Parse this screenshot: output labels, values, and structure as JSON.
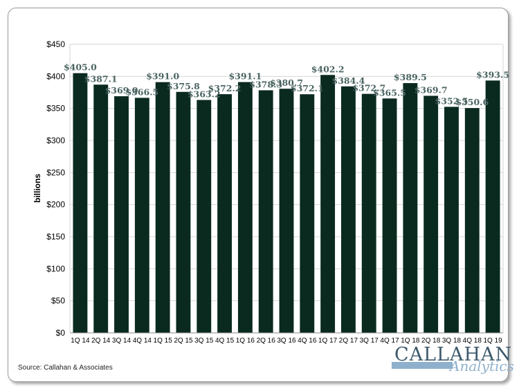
{
  "chart_data": {
    "type": "bar",
    "categories": [
      "1Q 14",
      "2Q 14",
      "3Q 14",
      "4Q 14",
      "1Q 15",
      "2Q 15",
      "3Q 15",
      "4Q 15",
      "1Q 16",
      "2Q 16",
      "3Q 16",
      "4Q 16",
      "1Q 17",
      "2Q 17",
      "3Q 17",
      "4Q 17",
      "1Q 18",
      "2Q 18",
      "3Q 18",
      "4Q 18",
      "1Q 19"
    ],
    "values": [
      405.0,
      387.1,
      369.0,
      366.5,
      391.0,
      375.8,
      363.2,
      372.2,
      391.1,
      378.3,
      380.7,
      372.1,
      402.2,
      384.4,
      372.7,
      365.5,
      389.5,
      369.7,
      352.5,
      350.6,
      393.5
    ],
    "data_labels": [
      "$405.0",
      "$387.1",
      "$369.0",
      "$366.5",
      "$391.0",
      "$375.8",
      "$363.2",
      "$372.2",
      "$391.1",
      "$378.3",
      "$380.7",
      "$372.1",
      "$402.2",
      "$384.4",
      "$372.7",
      "$365.5",
      "$389.5",
      "$369.7",
      "$352.5",
      "$350.6",
      "$393.5"
    ],
    "ylabel": "billions",
    "ylim": [
      0,
      450
    ],
    "yticks": [
      0,
      50,
      100,
      150,
      200,
      250,
      300,
      350,
      400,
      450
    ],
    "ytick_labels": [
      "$0",
      "$50",
      "$100",
      "$150",
      "$200",
      "$250",
      "$300",
      "$350",
      "$400",
      "$450"
    ],
    "grid": true,
    "bar_color": "#0a2a20",
    "label_color": "#4a6462"
  },
  "source": "Source: Callahan & Associates",
  "logo": {
    "main": "CALLAHAN",
    "sub": "Analytics"
  }
}
